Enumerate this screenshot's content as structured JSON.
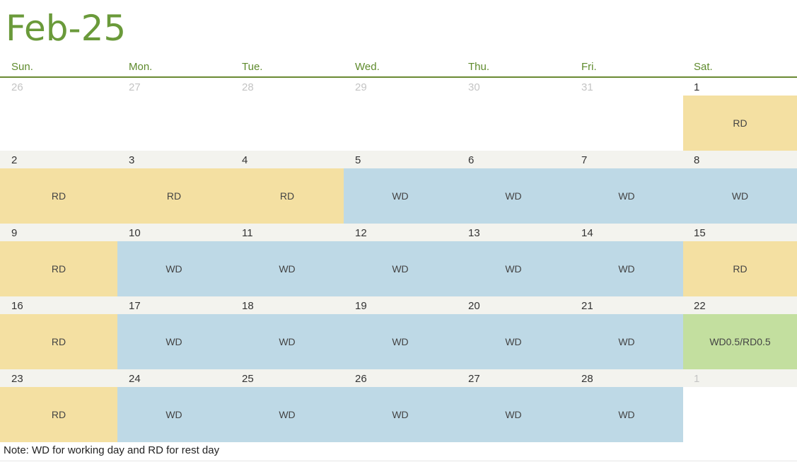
{
  "title": "Feb-25",
  "days_of_week": [
    "Sun.",
    "Mon.",
    "Tue.",
    "Wed.",
    "Thu.",
    "Fri.",
    "Sat."
  ],
  "weeks": [
    {
      "days": [
        {
          "num": "26",
          "muted": true,
          "status": ""
        },
        {
          "num": "27",
          "muted": true,
          "status": ""
        },
        {
          "num": "28",
          "muted": true,
          "status": ""
        },
        {
          "num": "29",
          "muted": true,
          "status": ""
        },
        {
          "num": "30",
          "muted": true,
          "status": ""
        },
        {
          "num": "31",
          "muted": true,
          "status": ""
        },
        {
          "num": "1",
          "muted": false,
          "status": "RD"
        }
      ]
    },
    {
      "days": [
        {
          "num": "2",
          "muted": false,
          "status": "RD"
        },
        {
          "num": "3",
          "muted": false,
          "status": "RD"
        },
        {
          "num": "4",
          "muted": false,
          "status": "RD"
        },
        {
          "num": "5",
          "muted": false,
          "status": "WD"
        },
        {
          "num": "6",
          "muted": false,
          "status": "WD"
        },
        {
          "num": "7",
          "muted": false,
          "status": "WD"
        },
        {
          "num": "8",
          "muted": false,
          "status": "WD"
        }
      ]
    },
    {
      "days": [
        {
          "num": "9",
          "muted": false,
          "status": "RD"
        },
        {
          "num": "10",
          "muted": false,
          "status": "WD"
        },
        {
          "num": "11",
          "muted": false,
          "status": "WD"
        },
        {
          "num": "12",
          "muted": false,
          "status": "WD"
        },
        {
          "num": "13",
          "muted": false,
          "status": "WD"
        },
        {
          "num": "14",
          "muted": false,
          "status": "WD"
        },
        {
          "num": "15",
          "muted": false,
          "status": "RD"
        }
      ]
    },
    {
      "days": [
        {
          "num": "16",
          "muted": false,
          "status": "RD"
        },
        {
          "num": "17",
          "muted": false,
          "status": "WD"
        },
        {
          "num": "18",
          "muted": false,
          "status": "WD"
        },
        {
          "num": "19",
          "muted": false,
          "status": "WD"
        },
        {
          "num": "20",
          "muted": false,
          "status": "WD"
        },
        {
          "num": "21",
          "muted": false,
          "status": "WD"
        },
        {
          "num": "22",
          "muted": false,
          "status": "WD0.5/RD0.5"
        }
      ]
    },
    {
      "days": [
        {
          "num": "23",
          "muted": false,
          "status": "RD"
        },
        {
          "num": "24",
          "muted": false,
          "status": "WD"
        },
        {
          "num": "25",
          "muted": false,
          "status": "WD"
        },
        {
          "num": "26",
          "muted": false,
          "status": "WD"
        },
        {
          "num": "27",
          "muted": false,
          "status": "WD"
        },
        {
          "num": "28",
          "muted": false,
          "status": "WD"
        },
        {
          "num": "1",
          "muted": true,
          "status": ""
        }
      ]
    }
  ],
  "colors": {
    "title_green": "#6a9a3a",
    "rest_day": "#f4e0a2",
    "working_day": "#bed9e6",
    "half_day": "#c3df9f"
  },
  "note": "Note: WD for working day and RD for rest day"
}
